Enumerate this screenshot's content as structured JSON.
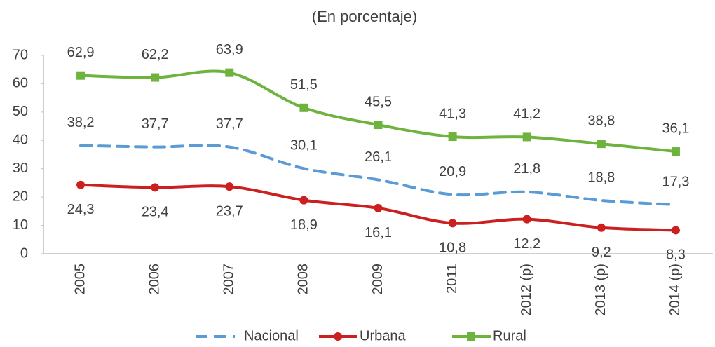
{
  "chart_data": {
    "type": "line",
    "title": "(En porcentaje)",
    "categories": [
      "2005",
      "2006",
      "2007",
      "2008",
      "2009",
      "2011",
      "2012 (p)",
      "2013 (p)",
      "2014 (p)"
    ],
    "series": [
      {
        "name": "Nacional",
        "color": "#5b9bd5",
        "dash": true,
        "marker": null,
        "values": [
          38.2,
          37.7,
          37.7,
          30.1,
          26.1,
          20.9,
          21.8,
          18.8,
          17.3
        ],
        "value_labels": [
          "38,2",
          "37,7",
          "37,7",
          "30,1",
          "26,1",
          "20,9",
          "21,8",
          "18,8",
          "17,3"
        ]
      },
      {
        "name": "Urbana",
        "color": "#cc1f1f",
        "dash": false,
        "marker": "circle",
        "values": [
          24.3,
          23.4,
          23.7,
          18.9,
          16.1,
          10.8,
          12.2,
          9.2,
          8.3
        ],
        "value_labels": [
          "24,3",
          "23,4",
          "23,7",
          "18,9",
          "16,1",
          "10,8",
          "12,2",
          "9,2",
          "8,3"
        ]
      },
      {
        "name": "Rural",
        "color": "#6fb33f",
        "dash": false,
        "marker": "square",
        "values": [
          62.9,
          62.2,
          63.9,
          51.5,
          45.5,
          41.3,
          41.2,
          38.8,
          36.1
        ],
        "value_labels": [
          "62,9",
          "62,2",
          "63,9",
          "51,5",
          "45,5",
          "41,3",
          "41,2",
          "38,8",
          "36,1"
        ]
      }
    ],
    "ylim": [
      0,
      70
    ],
    "yticks": [
      0,
      10,
      20,
      30,
      40,
      50,
      60,
      70
    ],
    "grid": false,
    "legend": "bottom"
  }
}
